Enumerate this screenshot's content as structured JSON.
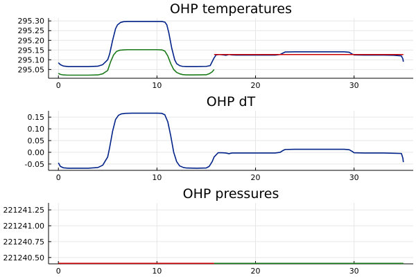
{
  "chart_data": [
    {
      "type": "line",
      "title": "OHP temperatures",
      "xlim": [
        -1,
        36
      ],
      "ylim": [
        295.005,
        295.315
      ],
      "xticks": [
        "0",
        "10",
        "20",
        "30"
      ],
      "yticks": [
        "295.05",
        "295.10",
        "295.15",
        "295.20",
        "295.25",
        "295.30"
      ],
      "grid": true,
      "legend": "none",
      "series": [
        {
          "color": "#002288",
          "x": [
            0,
            0.2,
            0.5,
            1,
            2,
            3,
            4,
            4.5,
            5,
            5.2,
            5.5,
            5.8,
            6,
            6.3,
            6.6,
            7,
            8,
            9,
            10,
            10.5,
            10.8,
            11,
            11.2,
            11.5,
            11.8,
            12,
            12.3,
            12.6,
            13,
            14,
            15,
            15.4,
            15.6,
            15.8,
            16,
            16.3,
            16.6,
            17,
            17.3,
            17.6,
            18,
            19,
            20,
            21,
            22,
            22.5,
            22.8,
            23,
            24,
            25,
            26,
            27,
            28,
            29,
            29.5,
            29.8,
            30,
            31,
            32,
            33,
            34,
            34.8,
            34.95,
            35
          ],
          "y": [
            295.085,
            295.075,
            295.068,
            295.065,
            295.065,
            295.065,
            295.067,
            295.075,
            295.1,
            295.13,
            295.2,
            295.26,
            295.28,
            295.292,
            295.296,
            295.297,
            295.297,
            295.297,
            295.297,
            295.297,
            295.294,
            295.28,
            295.24,
            295.16,
            295.1,
            295.08,
            295.07,
            295.066,
            295.065,
            295.065,
            295.066,
            295.07,
            295.09,
            295.11,
            295.125,
            295.127,
            295.126,
            295.123,
            295.127,
            295.125,
            295.124,
            295.124,
            295.124,
            295.124,
            295.124,
            295.127,
            295.135,
            295.14,
            295.141,
            295.141,
            295.141,
            295.141,
            295.141,
            295.141,
            295.139,
            295.13,
            295.125,
            295.124,
            295.124,
            295.124,
            295.123,
            295.12,
            295.105,
            295.09
          ]
        },
        {
          "color": "#1a7a1a",
          "x": [
            0,
            0.2,
            0.5,
            1,
            2,
            3,
            4,
            4.5,
            5,
            5.3,
            5.6,
            5.9,
            6.2,
            6.6,
            7,
            8,
            9,
            10,
            10.5,
            10.8,
            11.1,
            11.4,
            11.7,
            12,
            12.3,
            12.6,
            13,
            14,
            15,
            15.3,
            15.6,
            15.8
          ],
          "y": [
            295.03,
            295.025,
            295.022,
            295.021,
            295.021,
            295.021,
            295.022,
            295.028,
            295.045,
            295.09,
            295.125,
            295.143,
            295.149,
            295.151,
            295.152,
            295.152,
            295.152,
            295.152,
            295.151,
            295.145,
            295.12,
            295.08,
            295.05,
            295.035,
            295.028,
            295.024,
            295.022,
            295.022,
            295.023,
            295.028,
            295.038,
            295.05
          ]
        },
        {
          "color": "#cc0000",
          "x": [
            15.8,
            35
          ],
          "y": [
            295.127,
            295.127
          ]
        }
      ]
    },
    {
      "type": "line",
      "title": "OHP dT",
      "xlim": [
        -1,
        36
      ],
      "ylim": [
        -0.077,
        0.177
      ],
      "xticks": [
        "0",
        "10",
        "20",
        "30"
      ],
      "yticks": [
        "-0.05",
        "0.00",
        "0.05",
        "0.10",
        "0.15"
      ],
      "grid": true,
      "legend": "none",
      "series": [
        {
          "color": "#002288",
          "x": [
            0,
            0.2,
            0.5,
            1,
            2,
            3,
            4,
            4.5,
            5,
            5.2,
            5.5,
            5.8,
            6.1,
            6.4,
            6.8,
            7.5,
            8,
            9,
            10,
            10.5,
            10.8,
            11.1,
            11.4,
            11.7,
            12,
            12.3,
            12.7,
            13,
            14,
            15,
            15.3,
            15.6,
            15.8,
            16.2,
            16.6,
            17,
            17.3,
            17.6,
            18,
            19,
            20,
            21,
            22,
            22.5,
            22.8,
            23,
            24,
            25,
            26,
            27,
            28,
            29,
            29.5,
            29.8,
            30,
            31,
            32,
            33,
            34,
            34.8,
            34.95,
            35
          ],
          "y": [
            -0.045,
            -0.06,
            -0.066,
            -0.068,
            -0.068,
            -0.068,
            -0.065,
            -0.055,
            -0.02,
            0.02,
            0.09,
            0.14,
            0.158,
            0.164,
            0.166,
            0.167,
            0.167,
            0.167,
            0.167,
            0.166,
            0.16,
            0.13,
            0.07,
            0.0,
            -0.04,
            -0.058,
            -0.065,
            -0.067,
            -0.068,
            -0.067,
            -0.06,
            -0.04,
            -0.02,
            -0.002,
            -0.002,
            -0.003,
            -0.006,
            -0.003,
            -0.003,
            -0.003,
            -0.003,
            -0.003,
            -0.003,
            0.0,
            0.008,
            0.012,
            0.013,
            0.013,
            0.013,
            0.013,
            0.013,
            0.013,
            0.011,
            0.004,
            -0.002,
            -0.003,
            -0.003,
            -0.003,
            -0.004,
            -0.005,
            -0.025,
            -0.042
          ]
        }
      ]
    },
    {
      "type": "line",
      "title": "OHP pressures",
      "xlim": [
        -1,
        36
      ],
      "ylim": [
        221240.4,
        221241.36
      ],
      "xticks": [
        "0",
        "10",
        "20",
        "30"
      ],
      "yticks": [
        "221240.50",
        "221240.75",
        "221241.00",
        "221241.25"
      ],
      "grid": true,
      "legend": "none",
      "series": [
        {
          "color": "#cc0000",
          "x": [
            0,
            15.8
          ],
          "y": [
            221240.407,
            221240.407
          ]
        },
        {
          "color": "#1a7a1a",
          "x": [
            15.8,
            35
          ],
          "y": [
            221240.407,
            221240.407
          ]
        }
      ]
    }
  ]
}
